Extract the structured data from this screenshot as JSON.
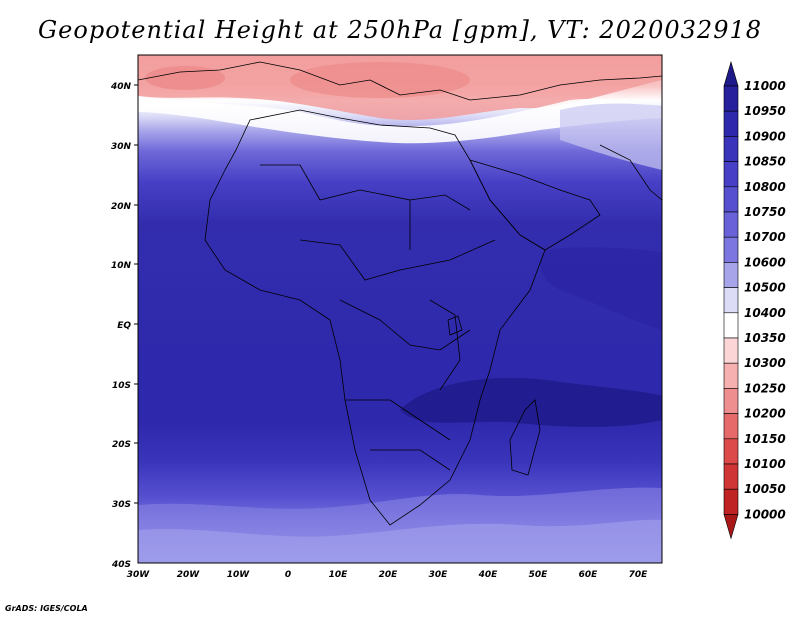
{
  "title": "Geopotential Height at 250hPa [gpm], VT: 2020032918",
  "footer": "GrADS: IGES/COLA",
  "map": {
    "lon_range": [
      -30,
      75
    ],
    "lat_range": [
      -40,
      45
    ],
    "lat_ticks": [
      "40N",
      "30N",
      "20N",
      "10N",
      "EQ",
      "10S",
      "20S",
      "30S",
      "40S"
    ],
    "lon_ticks": [
      "30W",
      "20W",
      "10W",
      "0",
      "10E",
      "20E",
      "30E",
      "40E",
      "50E",
      "60E",
      "70E"
    ]
  },
  "colorbar": {
    "levels": [
      "11000",
      "10950",
      "10900",
      "10850",
      "10800",
      "10750",
      "10700",
      "10600",
      "10500",
      "10400",
      "10350",
      "10300",
      "10250",
      "10200",
      "10150",
      "10100",
      "10050",
      "10000"
    ],
    "colors": [
      "#1f1a8a",
      "#26209c",
      "#2e28ac",
      "#3a34bb",
      "#4740c6",
      "#5650d0",
      "#6861d8",
      "#7b76e0",
      "#a7a4ea",
      "#dcdcf7",
      "#ffffff",
      "#fcd6d6",
      "#f6b0b0",
      "#ef8e8e",
      "#e66a6a",
      "#dc4a4a",
      "#cf3535",
      "#bf2323",
      "#a81818"
    ]
  },
  "chart_data": {
    "type": "heatmap",
    "variable": "Geopotential Height at 250hPa",
    "units": "gpm",
    "valid_time": "2020032918",
    "range": [
      10000,
      11000
    ],
    "latitude_profile": [
      {
        "lat": "45N",
        "approx_value": 10300
      },
      {
        "lat": "40N",
        "approx_value": 10350
      },
      {
        "lat": "35N",
        "approx_value": 10450
      },
      {
        "lat": "30N",
        "approx_value": 10600
      },
      {
        "lat": "25N",
        "approx_value": 10800
      },
      {
        "lat": "20N",
        "approx_value": 10880
      },
      {
        "lat": "10N",
        "approx_value": 10900
      },
      {
        "lat": "EQ",
        "approx_value": 10900
      },
      {
        "lat": "15S",
        "approx_value": 10950
      },
      {
        "lat": "20S",
        "approx_value": 10900
      },
      {
        "lat": "30S",
        "approx_value": 10800
      },
      {
        "lat": "40S",
        "approx_value": 10650
      }
    ]
  }
}
